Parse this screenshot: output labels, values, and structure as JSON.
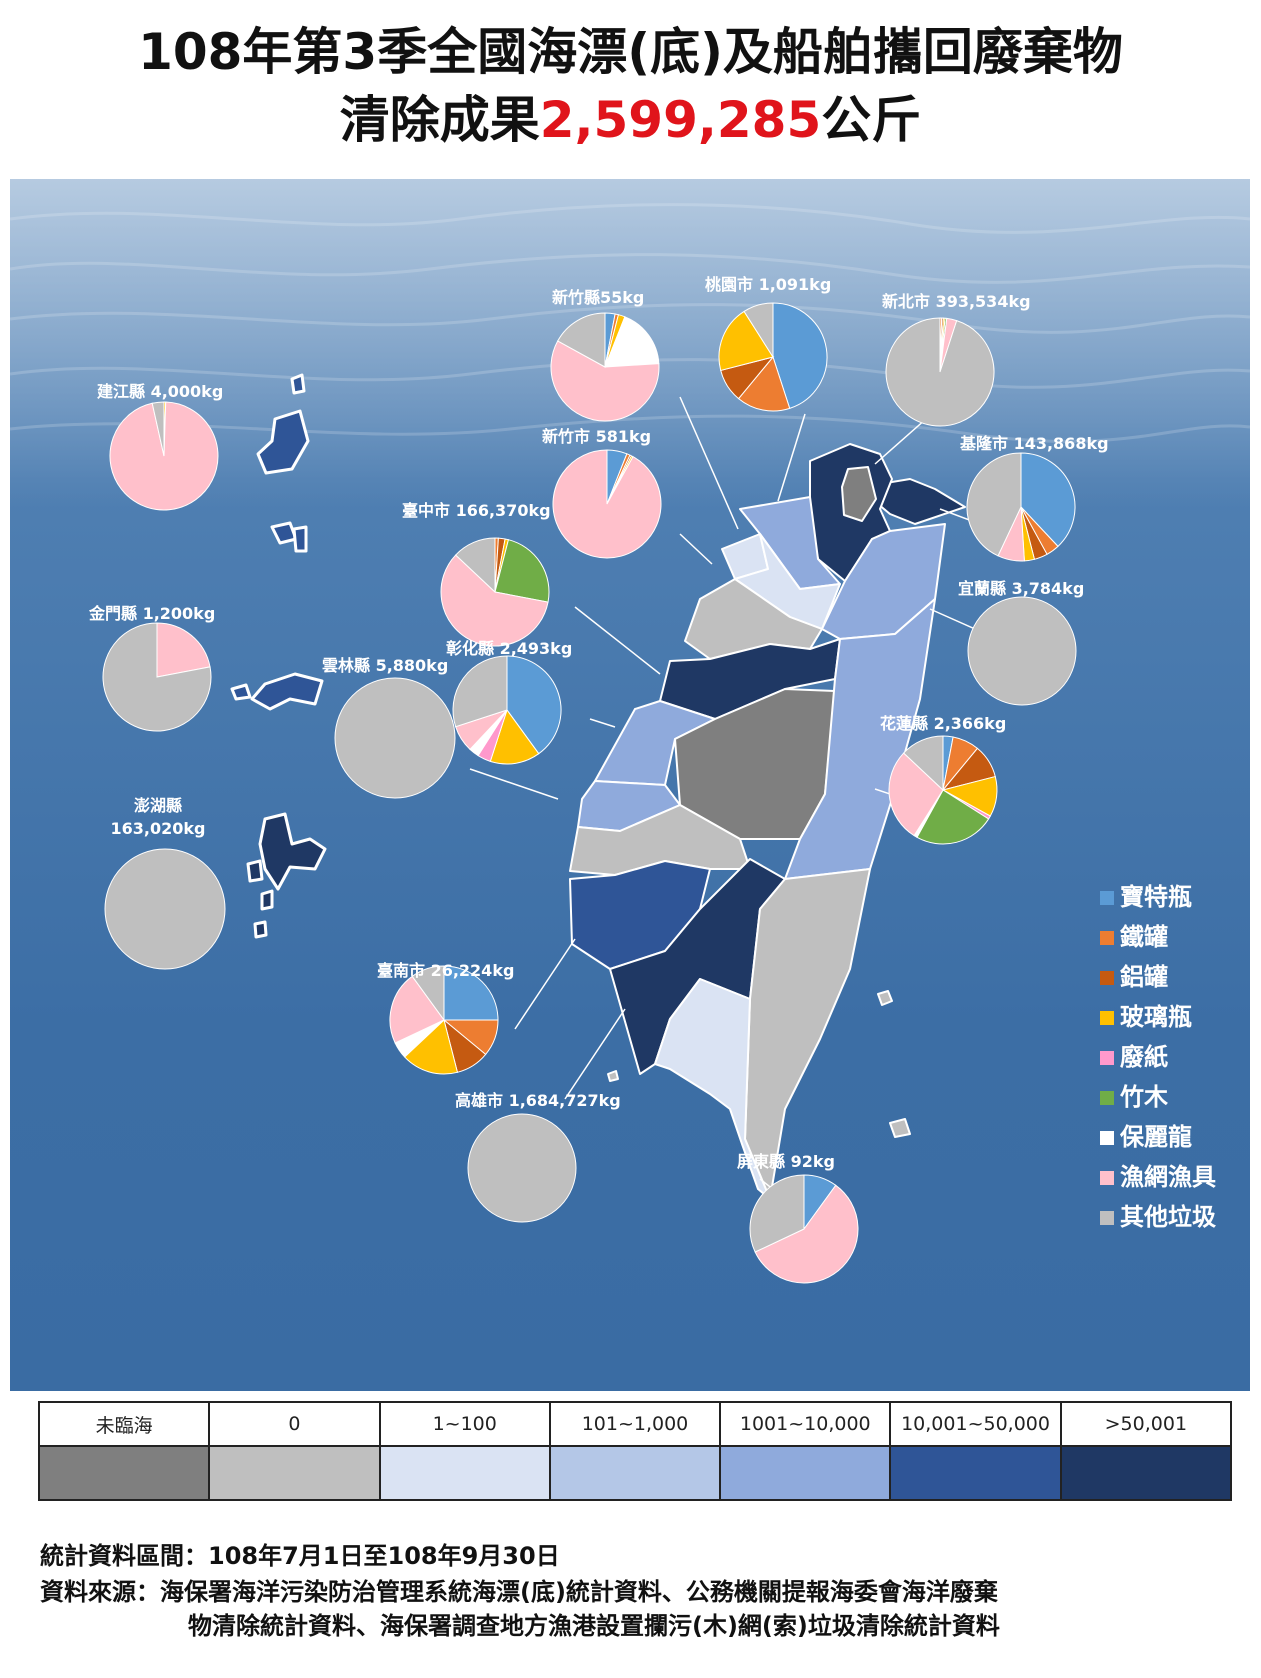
{
  "title": {
    "line1": "108年第3季全國海漂(底)及船舶攜回廢棄物",
    "line2_prefix": "清除成果",
    "line2_value": "2,599,285",
    "line2_unit": "公斤"
  },
  "colors": {
    "寶特瓶": "#5b9bd5",
    "鐵罐": "#ed7d31",
    "鋁罐": "#c55a11",
    "玻璃瓶": "#ffc000",
    "廢紙": "#ff99cc",
    "竹木": "#70ad47",
    "保麗龍": "#ffffff",
    "漁網漁具": "#ffc0cb",
    "其他垃圾": "#bfbfbf"
  },
  "chart_data": {
    "type": "pie",
    "categories": [
      "寶特瓶",
      "鐵罐",
      "鋁罐",
      "玻璃瓶",
      "廢紙",
      "竹木",
      "保麗龍",
      "漁網漁具",
      "其他垃圾"
    ],
    "legend_position": "right",
    "pies": [
      {
        "label": "新竹縣55kg",
        "values": [
          3,
          1,
          0,
          2,
          0,
          0,
          18,
          59,
          17
        ]
      },
      {
        "label": "桃園市 1,091kg",
        "values": [
          45,
          16,
          10,
          20,
          0,
          0,
          0,
          0,
          9
        ]
      },
      {
        "label": "新北市 393,534kg",
        "values": [
          0,
          0.5,
          0.5,
          0.5,
          0,
          0.5,
          0,
          3,
          95
        ]
      },
      {
        "label": "建江縣 4,000kg",
        "values": [
          0,
          0,
          0,
          0.5,
          0,
          0,
          0,
          96,
          3.5
        ]
      },
      {
        "label": "新竹市 581kg",
        "values": [
          6,
          1,
          0.5,
          0.5,
          0,
          0,
          0,
          92,
          0
        ]
      },
      {
        "label": "基隆市 143,868kg",
        "values": [
          38,
          4,
          4,
          3,
          0,
          0,
          0,
          8,
          43
        ]
      },
      {
        "label": "臺中市 166,370kg",
        "values": [
          0,
          1,
          2,
          1,
          0,
          24,
          0,
          59,
          13
        ]
      },
      {
        "label": "宜蘭縣 3,784kg",
        "values": [
          0,
          0,
          0,
          0,
          0,
          0,
          0,
          0,
          100
        ]
      },
      {
        "label": "金門縣 1,200kg",
        "values": [
          0,
          0,
          0,
          0,
          0,
          0,
          0,
          22,
          78
        ]
      },
      {
        "label": "雲林縣 5,880kg",
        "values": [
          0,
          0,
          0,
          0,
          0,
          0,
          0,
          0,
          100
        ]
      },
      {
        "label": "彰化縣 2,493kg",
        "values": [
          40,
          0,
          0,
          15,
          4,
          0,
          3,
          8,
          30
        ]
      },
      {
        "label": "花蓮縣 2,366kg",
        "values": [
          3,
          8,
          10,
          12,
          1,
          24,
          1,
          28,
          13
        ]
      },
      {
        "label": "澎湖縣 163,020kg",
        "values": [
          0,
          0,
          0,
          0,
          0,
          0,
          0,
          0,
          100
        ]
      },
      {
        "label": "臺南市 26,224kg",
        "values": [
          25,
          11,
          10,
          17,
          0,
          0,
          5,
          22,
          10
        ]
      },
      {
        "label": "高雄市 1,684,727kg",
        "values": [
          0,
          0,
          0,
          0,
          0,
          0,
          0,
          0,
          100
        ]
      },
      {
        "label": "屏東縣 92kg",
        "values": [
          10,
          0,
          0,
          0,
          0,
          0,
          0,
          58,
          32
        ]
      }
    ]
  },
  "scale": {
    "labels": [
      "未臨海",
      "0",
      "1~100",
      "101~1,000",
      "1001~10,000",
      "10,001~50,000",
      ">50,001"
    ],
    "colors": [
      "#7f7f7f",
      "#bfbfbf",
      "#dae3f3",
      "#b4c7e7",
      "#8faadc",
      "#2f5597",
      "#1f3864"
    ]
  },
  "footer": {
    "period": "統計資料區間：108年7月1日至108年9月30日",
    "source_line1": "資料來源：海保署海洋污染防治管理系統海漂(底)統計資料、公務機關提報海委會海洋廢棄",
    "source_line2": "物清除統計資料、海保署調查地方漁港設置攔污(木)網(索)垃圾清除統計資料"
  }
}
